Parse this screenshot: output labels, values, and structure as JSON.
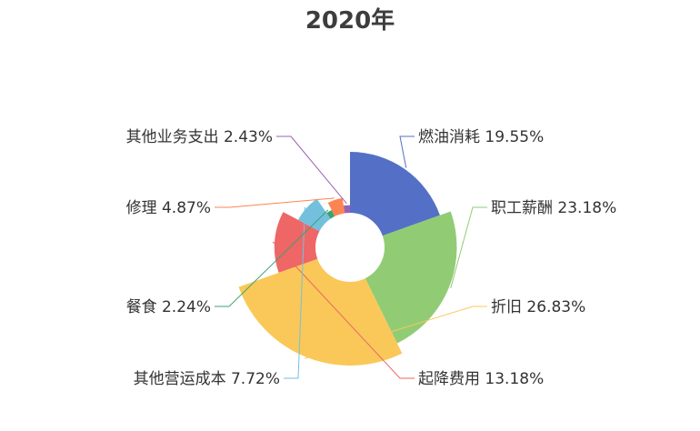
{
  "chart_data": {
    "type": "pie",
    "subtype": "rose",
    "title": "2020年",
    "slices": [
      {
        "name": "燃油消耗",
        "label": "燃油消耗 19.55%",
        "value": 19.55,
        "color": "#5470c6"
      },
      {
        "name": "职工薪酬",
        "label": "职工薪酬 23.18%",
        "value": 23.18,
        "color": "#91cc75"
      },
      {
        "name": "折旧",
        "label": "折旧 26.83%",
        "value": 26.83,
        "color": "#fac858"
      },
      {
        "name": "起降费用",
        "label": "起降费用 13.18%",
        "value": 13.18,
        "color": "#ee6666"
      },
      {
        "name": "其他营运成本",
        "label": "其他营运成本 7.72%",
        "value": 7.72,
        "color": "#73c0de"
      },
      {
        "name": "餐食",
        "label": "餐食 2.24%",
        "value": 2.24,
        "color": "#3ba272"
      },
      {
        "name": "修理",
        "label": "修理 4.87%",
        "value": 4.87,
        "color": "#fc8452"
      },
      {
        "name": "其他业务支出",
        "label": "其他业务支出 2.43%",
        "value": 2.43,
        "color": "#9a60b4"
      }
    ]
  }
}
